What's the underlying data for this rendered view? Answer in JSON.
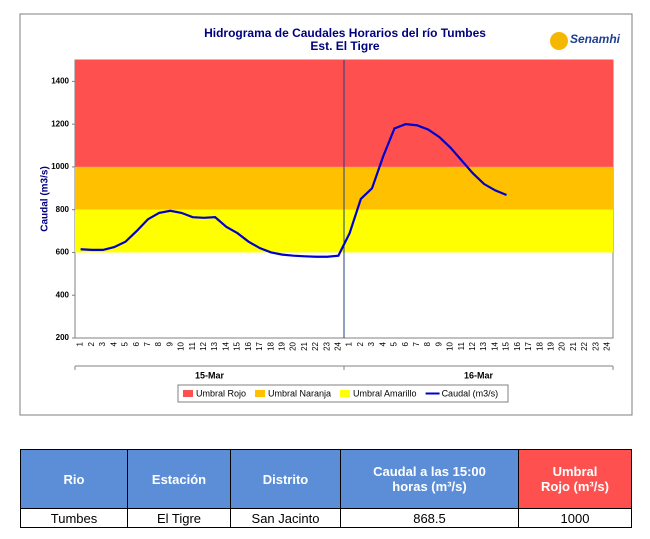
{
  "chart_data": {
    "type": "line",
    "title": "Hidrograma de Caudales Horarios del río Tumbes",
    "subtitle": "Est. El Tigre",
    "logo": "Senamhi",
    "y_label": "Caudal  (m3/s)",
    "categories": [
      "1",
      "2",
      "3",
      "4",
      "5",
      "6",
      "7",
      "8",
      "9",
      "10",
      "11",
      "12",
      "13",
      "14",
      "15",
      "16",
      "17",
      "18",
      "19",
      "20",
      "21",
      "22",
      "23",
      "24",
      "1",
      "2",
      "3",
      "4",
      "5",
      "6",
      "7",
      "8",
      "9",
      "10",
      "11",
      "12",
      "13",
      "14",
      "15",
      "16",
      "17",
      "18",
      "19",
      "20",
      "21",
      "22",
      "23",
      "24"
    ],
    "groups": [
      "15-Mar",
      "16-Mar"
    ],
    "ylim": [
      200,
      1500
    ],
    "yticks": [
      200,
      400,
      600,
      800,
      1000,
      1200,
      1400
    ],
    "bands": [
      {
        "name": "Umbral Rojo",
        "color": "#ff5050",
        "from": 1000,
        "to": 1500
      },
      {
        "name": "Umbral Naranja",
        "color": "#ffc000",
        "from": 800,
        "to": 1000
      },
      {
        "name": "Umbral Amarillo",
        "color": "#ffff00",
        "from": 600,
        "to": 800
      }
    ],
    "series": [
      {
        "name": "Caudal (m3/s)",
        "color": "#0000cc",
        "values": [
          615,
          612,
          612,
          625,
          650,
          700,
          755,
          785,
          795,
          785,
          765,
          762,
          765,
          720,
          690,
          650,
          620,
          600,
          590,
          585,
          582,
          580,
          580,
          585,
          690,
          850,
          900,
          1050,
          1180,
          1200,
          1195,
          1175,
          1140,
          1090,
          1030,
          970,
          920,
          890,
          868.5,
          null,
          null,
          null,
          null,
          null,
          null,
          null,
          null,
          null
        ]
      }
    ]
  },
  "table": {
    "header": [
      "Rio",
      "Estación",
      "Distrito",
      "Caudal a las 15:00 horas (m³/s)",
      "Umbral Rojo (m³/s)"
    ],
    "rows": [
      [
        "Tumbes",
        "El Tigre",
        "San Jacinto",
        "868.5",
        "1000"
      ]
    ]
  }
}
